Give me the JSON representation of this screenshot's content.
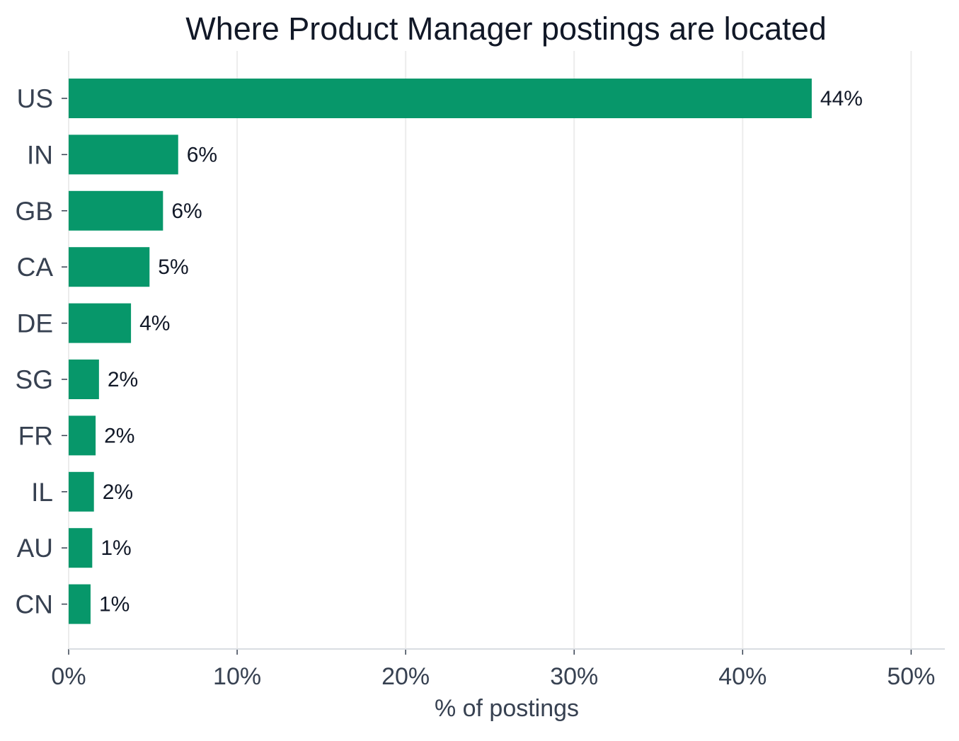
{
  "chart_data": {
    "type": "bar",
    "orientation": "horizontal",
    "title": "Where Product Manager postings are located",
    "xlabel": "% of postings",
    "ylabel": "",
    "categories": [
      "US",
      "IN",
      "GB",
      "CA",
      "DE",
      "SG",
      "FR",
      "IL",
      "AU",
      "CN"
    ],
    "values": [
      44.1,
      6.5,
      5.6,
      4.8,
      3.7,
      1.8,
      1.6,
      1.5,
      1.4,
      1.3
    ],
    "data_labels": [
      "44%",
      "6%",
      "6%",
      "5%",
      "4%",
      "2%",
      "2%",
      "2%",
      "1%",
      "1%"
    ],
    "xlim": [
      0,
      52
    ],
    "xticks": [
      0,
      10,
      20,
      30,
      40,
      50
    ],
    "xtick_labels": [
      "0%",
      "10%",
      "20%",
      "30%",
      "40%",
      "50%"
    ],
    "grid": "vertical",
    "legend": "none",
    "colors": {
      "bar": "#07976a",
      "title": "#111827",
      "axis_text": "#374151",
      "data_label": "#111827",
      "grid": "#ececec",
      "axis_line": "#d9dde2"
    }
  }
}
